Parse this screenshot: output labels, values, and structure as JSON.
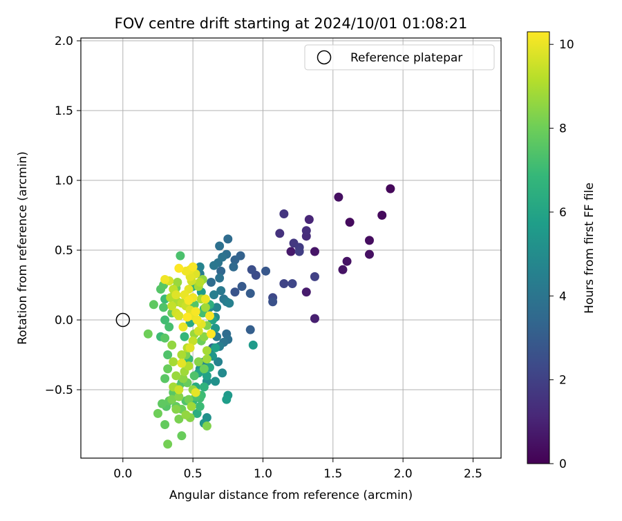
{
  "chart_data": {
    "type": "scatter",
    "title": "FOV centre drift starting at 2024/10/01 01:08:21",
    "xlabel": "Angular distance from reference (arcmin)",
    "ylabel": "Rotation from reference (arcmin)",
    "xlim": [
      -0.3,
      2.7
    ],
    "ylim": [
      -0.99,
      2.02
    ],
    "xticks": [
      "0.0",
      "0.5",
      "1.0",
      "1.5",
      "2.0",
      "2.5"
    ],
    "xtick_values": [
      0,
      0.5,
      1.0,
      1.5,
      2.0,
      2.5
    ],
    "yticks": [
      "−0.5",
      "0.0",
      "0.5",
      "1.0",
      "1.5",
      "2.0"
    ],
    "ytick_values": [
      -0.5,
      0,
      0.5,
      1.0,
      1.5,
      2.0
    ],
    "grid": true,
    "legend": {
      "position": "upper right",
      "entries": [
        "Reference platepar"
      ]
    },
    "reference_point": {
      "x": 0.0,
      "y": 0.0,
      "label": "Reference platepar"
    },
    "colorbar": {
      "label": "Hours from first FF file",
      "range": [
        0,
        10.3
      ],
      "ticks": [
        "0",
        "2",
        "4",
        "6",
        "8",
        "10"
      ],
      "tick_values": [
        0,
        2,
        4,
        6,
        8,
        10
      ],
      "colormap": "viridis",
      "colormap_stops": [
        "#440154",
        "#482878",
        "#3e4989",
        "#31688e",
        "#26828e",
        "#1f9e89",
        "#35b779",
        "#6ece58",
        "#b5de2b",
        "#fde725"
      ]
    },
    "points": [
      {
        "x": 1.91,
        "y": 0.94,
        "h": 0.2
      },
      {
        "x": 1.85,
        "y": 0.75,
        "h": 0.25
      },
      {
        "x": 1.54,
        "y": 0.88,
        "h": 0.4
      },
      {
        "x": 1.62,
        "y": 0.7,
        "h": 0.3
      },
      {
        "x": 1.76,
        "y": 0.57,
        "h": 0.35
      },
      {
        "x": 1.76,
        "y": 0.47,
        "h": 0.45
      },
      {
        "x": 1.6,
        "y": 0.42,
        "h": 0.5
      },
      {
        "x": 1.57,
        "y": 0.36,
        "h": 0.55
      },
      {
        "x": 1.37,
        "y": 0.49,
        "h": 0.6
      },
      {
        "x": 1.2,
        "y": 0.49,
        "h": 0.7
      },
      {
        "x": 1.31,
        "y": 0.2,
        "h": 0.8
      },
      {
        "x": 1.37,
        "y": 0.01,
        "h": 0.9
      },
      {
        "x": 1.33,
        "y": 0.72,
        "h": 1.1
      },
      {
        "x": 1.31,
        "y": 0.64,
        "h": 1.4
      },
      {
        "x": 1.31,
        "y": 0.6,
        "h": 1.3
      },
      {
        "x": 1.15,
        "y": 0.76,
        "h": 1.6
      },
      {
        "x": 1.12,
        "y": 0.62,
        "h": 1.5
      },
      {
        "x": 1.22,
        "y": 0.55,
        "h": 1.7
      },
      {
        "x": 1.26,
        "y": 0.52,
        "h": 1.8
      },
      {
        "x": 1.26,
        "y": 0.49,
        "h": 1.9
      },
      {
        "x": 1.37,
        "y": 0.31,
        "h": 2.0
      },
      {
        "x": 1.15,
        "y": 0.26,
        "h": 2.1
      },
      {
        "x": 1.21,
        "y": 0.26,
        "h": 2.2
      },
      {
        "x": 1.07,
        "y": 0.16,
        "h": 2.3
      },
      {
        "x": 1.07,
        "y": 0.13,
        "h": 2.6
      },
      {
        "x": 0.92,
        "y": 0.36,
        "h": 2.5
      },
      {
        "x": 0.95,
        "y": 0.32,
        "h": 2.4
      },
      {
        "x": 1.02,
        "y": 0.35,
        "h": 2.8
      },
      {
        "x": 0.85,
        "y": 0.24,
        "h": 2.9
      },
      {
        "x": 0.91,
        "y": 0.19,
        "h": 3.0
      },
      {
        "x": 0.91,
        "y": -0.07,
        "h": 3.1
      },
      {
        "x": 0.8,
        "y": 0.2,
        "h": 2.7
      },
      {
        "x": 0.84,
        "y": 0.46,
        "h": 3.2
      },
      {
        "x": 0.8,
        "y": 0.43,
        "h": 3.3
      },
      {
        "x": 0.79,
        "y": 0.38,
        "h": 3.5
      },
      {
        "x": 0.75,
        "y": 0.58,
        "h": 3.6
      },
      {
        "x": 0.69,
        "y": 0.53,
        "h": 3.8
      },
      {
        "x": 0.74,
        "y": 0.47,
        "h": 3.7
      },
      {
        "x": 0.71,
        "y": 0.45,
        "h": 3.9
      },
      {
        "x": 0.68,
        "y": 0.41,
        "h": 4.0
      },
      {
        "x": 0.65,
        "y": 0.39,
        "h": 4.1
      },
      {
        "x": 0.7,
        "y": 0.35,
        "h": 3.4
      },
      {
        "x": 0.63,
        "y": 0.27,
        "h": 3.6
      },
      {
        "x": 0.69,
        "y": 0.3,
        "h": 3.9
      },
      {
        "x": 0.7,
        "y": 0.21,
        "h": 4.2
      },
      {
        "x": 0.65,
        "y": 0.18,
        "h": 4.4
      },
      {
        "x": 0.74,
        "y": 0.13,
        "h": 4.3
      },
      {
        "x": 0.76,
        "y": 0.12,
        "h": 4.5
      },
      {
        "x": 0.72,
        "y": 0.15,
        "h": 4.1
      },
      {
        "x": 0.67,
        "y": 0.09,
        "h": 4.7
      },
      {
        "x": 0.62,
        "y": 0.09,
        "h": 4.9
      },
      {
        "x": 0.66,
        "y": 0.02,
        "h": 5.0
      },
      {
        "x": 0.74,
        "y": -0.1,
        "h": 3.6
      },
      {
        "x": 0.75,
        "y": -0.14,
        "h": 3.8
      },
      {
        "x": 0.72,
        "y": -0.16,
        "h": 4.0
      },
      {
        "x": 0.67,
        "y": -0.12,
        "h": 4.2
      },
      {
        "x": 0.69,
        "y": -0.19,
        "h": 4.4
      },
      {
        "x": 0.64,
        "y": -0.2,
        "h": 3.4
      },
      {
        "x": 0.68,
        "y": -0.3,
        "h": 4.6
      },
      {
        "x": 0.71,
        "y": -0.38,
        "h": 4.9
      },
      {
        "x": 0.66,
        "y": -0.44,
        "h": 5.2
      },
      {
        "x": 0.6,
        "y": -0.44,
        "h": 5.1
      },
      {
        "x": 0.75,
        "y": -0.54,
        "h": 5.5
      },
      {
        "x": 0.74,
        "y": -0.57,
        "h": 5.7
      },
      {
        "x": 0.93,
        "y": -0.18,
        "h": 5.6
      },
      {
        "x": 0.58,
        "y": -0.3,
        "h": 4.8
      },
      {
        "x": 0.55,
        "y": -0.35,
        "h": 5.3
      },
      {
        "x": 0.54,
        "y": -0.38,
        "h": 6.0
      },
      {
        "x": 0.52,
        "y": -0.48,
        "h": 6.3
      },
      {
        "x": 0.6,
        "y": -0.7,
        "h": 5.2
      },
      {
        "x": 0.58,
        "y": -0.74,
        "h": 5.4
      },
      {
        "x": 0.53,
        "y": -0.67,
        "h": 6.4
      },
      {
        "x": 0.55,
        "y": 0.38,
        "h": 4.6
      },
      {
        "x": 0.55,
        "y": 0.33,
        "h": 4.3
      },
      {
        "x": 0.56,
        "y": 0.2,
        "h": 5.6
      },
      {
        "x": 0.5,
        "y": 0.24,
        "h": 6.5
      },
      {
        "x": 0.58,
        "y": 0.08,
        "h": 6.6
      },
      {
        "x": 0.48,
        "y": -0.02,
        "h": 6.2
      },
      {
        "x": 0.44,
        "y": -0.12,
        "h": 6.8
      },
      {
        "x": 0.47,
        "y": -0.28,
        "h": 6.9
      },
      {
        "x": 0.42,
        "y": -0.45,
        "h": 7.2
      },
      {
        "x": 0.45,
        "y": -0.58,
        "h": 7.4
      },
      {
        "x": 0.4,
        "y": -0.48,
        "h": 7.5
      },
      {
        "x": 0.36,
        "y": -0.52,
        "h": 7.6
      },
      {
        "x": 0.33,
        "y": -0.58,
        "h": 7.7
      },
      {
        "x": 0.38,
        "y": -0.62,
        "h": 7.8
      },
      {
        "x": 0.42,
        "y": -0.64,
        "h": 8.0
      },
      {
        "x": 0.47,
        "y": -0.57,
        "h": 8.1
      },
      {
        "x": 0.52,
        "y": -0.55,
        "h": 7.3
      },
      {
        "x": 0.55,
        "y": -0.56,
        "h": 7.1
      },
      {
        "x": 0.32,
        "y": -0.35,
        "h": 7.9
      },
      {
        "x": 0.3,
        "y": -0.42,
        "h": 7.6
      },
      {
        "x": 0.32,
        "y": -0.25,
        "h": 7.4
      },
      {
        "x": 0.28,
        "y": -0.6,
        "h": 7.7
      },
      {
        "x": 0.31,
        "y": -0.62,
        "h": 7.5
      },
      {
        "x": 0.25,
        "y": -0.67,
        "h": 8.0
      },
      {
        "x": 0.3,
        "y": -0.75,
        "h": 7.8
      },
      {
        "x": 0.4,
        "y": -0.71,
        "h": 8.2
      },
      {
        "x": 0.42,
        "y": -0.83,
        "h": 7.9
      },
      {
        "x": 0.32,
        "y": -0.89,
        "h": 8.1
      },
      {
        "x": 0.48,
        "y": -0.7,
        "h": 8.4
      },
      {
        "x": 0.6,
        "y": -0.76,
        "h": 8.3
      },
      {
        "x": 0.5,
        "y": -0.5,
        "h": 8.6
      },
      {
        "x": 0.43,
        "y": -0.42,
        "h": 8.5
      },
      {
        "x": 0.44,
        "y": -0.37,
        "h": 8.8
      },
      {
        "x": 0.38,
        "y": -0.4,
        "h": 8.7
      },
      {
        "x": 0.36,
        "y": -0.3,
        "h": 8.9
      },
      {
        "x": 0.42,
        "y": -0.25,
        "h": 9.0
      },
      {
        "x": 0.46,
        "y": -0.2,
        "h": 9.2
      },
      {
        "x": 0.35,
        "y": -0.18,
        "h": 8.6
      },
      {
        "x": 0.3,
        "y": -0.13,
        "h": 7.6
      },
      {
        "x": 0.18,
        "y": -0.1,
        "h": 8.0
      },
      {
        "x": 0.27,
        "y": -0.12,
        "h": 7.0
      },
      {
        "x": 0.33,
        "y": -0.05,
        "h": 7.2
      },
      {
        "x": 0.3,
        "y": 0.0,
        "h": 7.1
      },
      {
        "x": 0.35,
        "y": 0.05,
        "h": 7.8
      },
      {
        "x": 0.29,
        "y": 0.09,
        "h": 7.4
      },
      {
        "x": 0.22,
        "y": 0.11,
        "h": 7.7
      },
      {
        "x": 0.3,
        "y": 0.15,
        "h": 7.0
      },
      {
        "x": 0.27,
        "y": 0.22,
        "h": 7.5
      },
      {
        "x": 0.29,
        "y": 0.25,
        "h": 7.6
      },
      {
        "x": 0.33,
        "y": 0.28,
        "h": 8.1
      },
      {
        "x": 0.37,
        "y": 0.2,
        "h": 8.4
      },
      {
        "x": 0.39,
        "y": 0.27,
        "h": 8.7
      },
      {
        "x": 0.41,
        "y": 0.46,
        "h": 7.3
      },
      {
        "x": 0.39,
        "y": 0.13,
        "h": 9.0
      },
      {
        "x": 0.42,
        "y": 0.12,
        "h": 9.3
      },
      {
        "x": 0.45,
        "y": 0.1,
        "h": 9.5
      },
      {
        "x": 0.48,
        "y": 0.07,
        "h": 9.8
      },
      {
        "x": 0.5,
        "y": 0.03,
        "h": 10.0
      },
      {
        "x": 0.53,
        "y": 0.0,
        "h": 10.1
      },
      {
        "x": 0.56,
        "y": -0.03,
        "h": 9.9
      },
      {
        "x": 0.52,
        "y": 0.06,
        "h": 10.2
      },
      {
        "x": 0.46,
        "y": 0.02,
        "h": 10.3
      },
      {
        "x": 0.43,
        "y": -0.05,
        "h": 10.0
      },
      {
        "x": 0.4,
        "y": 0.03,
        "h": 9.7
      },
      {
        "x": 0.38,
        "y": 0.05,
        "h": 9.6
      },
      {
        "x": 0.35,
        "y": 0.1,
        "h": 9.4
      },
      {
        "x": 0.34,
        "y": 0.16,
        "h": 9.1
      },
      {
        "x": 0.36,
        "y": 0.22,
        "h": 9.3
      },
      {
        "x": 0.38,
        "y": 0.18,
        "h": 9.8
      },
      {
        "x": 0.44,
        "y": 0.18,
        "h": 10.0
      },
      {
        "x": 0.47,
        "y": 0.14,
        "h": 10.2
      },
      {
        "x": 0.5,
        "y": 0.16,
        "h": 10.1
      },
      {
        "x": 0.47,
        "y": 0.22,
        "h": 9.9
      },
      {
        "x": 0.49,
        "y": 0.28,
        "h": 9.6
      },
      {
        "x": 0.48,
        "y": 0.31,
        "h": 9.9
      },
      {
        "x": 0.45,
        "y": 0.35,
        "h": 10.1
      },
      {
        "x": 0.5,
        "y": 0.38,
        "h": 10.2
      },
      {
        "x": 0.52,
        "y": 0.33,
        "h": 9.8
      },
      {
        "x": 0.4,
        "y": 0.37,
        "h": 10.3
      },
      {
        "x": 0.33,
        "y": 0.28,
        "h": 9.7
      },
      {
        "x": 0.3,
        "y": 0.29,
        "h": 10.1
      },
      {
        "x": 0.55,
        "y": 0.27,
        "h": 9.2
      },
      {
        "x": 0.57,
        "y": 0.29,
        "h": 8.6
      },
      {
        "x": 0.54,
        "y": 0.24,
        "h": 8.9
      },
      {
        "x": 0.56,
        "y": 0.15,
        "h": 9.0
      },
      {
        "x": 0.59,
        "y": 0.15,
        "h": 10.0
      },
      {
        "x": 0.59,
        "y": 0.09,
        "h": 8.8
      },
      {
        "x": 0.62,
        "y": 0.03,
        "h": 10.2
      },
      {
        "x": 0.6,
        "y": -0.04,
        "h": 8.3
      },
      {
        "x": 0.63,
        "y": -0.1,
        "h": 10.3
      },
      {
        "x": 0.58,
        "y": -0.12,
        "h": 8.5
      },
      {
        "x": 0.56,
        "y": -0.15,
        "h": 8.0
      },
      {
        "x": 0.54,
        "y": -0.08,
        "h": 9.6
      },
      {
        "x": 0.51,
        "y": -0.1,
        "h": 8.7
      },
      {
        "x": 0.5,
        "y": -0.15,
        "h": 9.4
      },
      {
        "x": 0.48,
        "y": -0.2,
        "h": 9.8
      },
      {
        "x": 0.45,
        "y": -0.25,
        "h": 8.2
      },
      {
        "x": 0.42,
        "y": -0.31,
        "h": 9.9
      },
      {
        "x": 0.47,
        "y": -0.33,
        "h": 9.1
      },
      {
        "x": 0.54,
        "y": -0.3,
        "h": 8.4
      },
      {
        "x": 0.6,
        "y": -0.28,
        "h": 8.8
      },
      {
        "x": 0.58,
        "y": -0.35,
        "h": 8.0
      },
      {
        "x": 0.6,
        "y": -0.22,
        "h": 8.9
      },
      {
        "x": 0.51,
        "y": -0.4,
        "h": 7.4
      },
      {
        "x": 0.46,
        "y": -0.45,
        "h": 7.9
      },
      {
        "x": 0.4,
        "y": -0.55,
        "h": 8.4
      },
      {
        "x": 0.36,
        "y": -0.48,
        "h": 8.9
      },
      {
        "x": 0.4,
        "y": -0.5,
        "h": 9.5
      },
      {
        "x": 0.52,
        "y": -0.52,
        "h": 9.9
      },
      {
        "x": 0.45,
        "y": -0.68,
        "h": 8.6
      },
      {
        "x": 0.38,
        "y": -0.64,
        "h": 8.4
      },
      {
        "x": 0.35,
        "y": -0.57,
        "h": 8.2
      },
      {
        "x": 0.49,
        "y": -0.62,
        "h": 8.8
      },
      {
        "x": 0.55,
        "y": -0.62,
        "h": 7.0
      },
      {
        "x": 0.48,
        "y": 0.36,
        "h": 10.0
      },
      {
        "x": 0.38,
        "y": 0.23,
        "h": 8.0
      },
      {
        "x": 0.51,
        "y": 0.11,
        "h": 7.5
      },
      {
        "x": 0.57,
        "y": 0.05,
        "h": 7.2
      },
      {
        "x": 0.62,
        "y": 0.11,
        "h": 6.5
      },
      {
        "x": 0.64,
        "y": 0.0,
        "h": 6.0
      },
      {
        "x": 0.66,
        "y": -0.06,
        "h": 5.4
      },
      {
        "x": 0.66,
        "y": -0.2,
        "h": 5.8
      },
      {
        "x": 0.64,
        "y": -0.26,
        "h": 5.4
      },
      {
        "x": 0.62,
        "y": -0.34,
        "h": 6.2
      },
      {
        "x": 0.6,
        "y": -0.4,
        "h": 5.9
      },
      {
        "x": 0.58,
        "y": -0.48,
        "h": 6.6
      },
      {
        "x": 0.56,
        "y": -0.54,
        "h": 7.0
      },
      {
        "x": 0.5,
        "y": -0.58,
        "h": 6.8
      }
    ]
  }
}
